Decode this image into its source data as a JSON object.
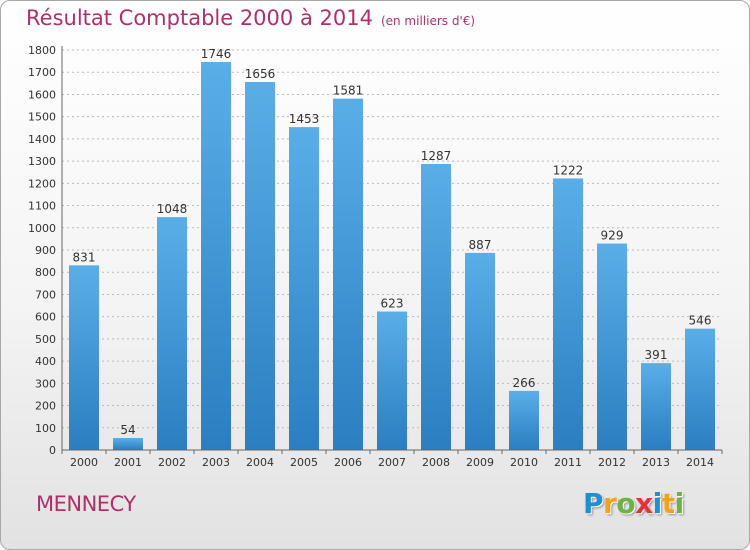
{
  "header": {
    "title": "Résultat Comptable 2000 à 2014",
    "unit": "(en milliers d'€)"
  },
  "city": "MENNECY",
  "logo": {
    "text": "Proxiti",
    "letters": [
      {
        "ch": "P",
        "color": "#1f8ed4"
      },
      {
        "ch": "r",
        "color": "#f2a31b"
      },
      {
        "ch": "o",
        "color": "#6cb33f"
      },
      {
        "ch": "x",
        "color": "#e53238"
      },
      {
        "ch": "i",
        "color": "#1f8ed4"
      },
      {
        "ch": "t",
        "color": "#f2a31b"
      },
      {
        "ch": "i",
        "color": "#6cb33f"
      }
    ]
  },
  "colors": {
    "title": "#b0306a",
    "bar_light": "#5aaee8",
    "bar_dark": "#2b7ec0",
    "grid": "#bbbbbb",
    "axis": "#666666"
  },
  "chart_data": {
    "type": "bar",
    "categories": [
      "2000",
      "2001",
      "2002",
      "2003",
      "2004",
      "2005",
      "2006",
      "2007",
      "2008",
      "2009",
      "2010",
      "2011",
      "2012",
      "2013",
      "2014"
    ],
    "values": [
      831,
      54,
      1048,
      1746,
      1656,
      1453,
      1581,
      623,
      1287,
      887,
      266,
      1222,
      929,
      391,
      546
    ],
    "ylim": [
      0,
      1800
    ],
    "yticks": [
      0,
      100,
      200,
      300,
      400,
      500,
      600,
      700,
      800,
      900,
      1000,
      1100,
      1200,
      1300,
      1400,
      1500,
      1600,
      1700,
      1800
    ],
    "grid": "horizontal dashed",
    "data_labels": true
  }
}
